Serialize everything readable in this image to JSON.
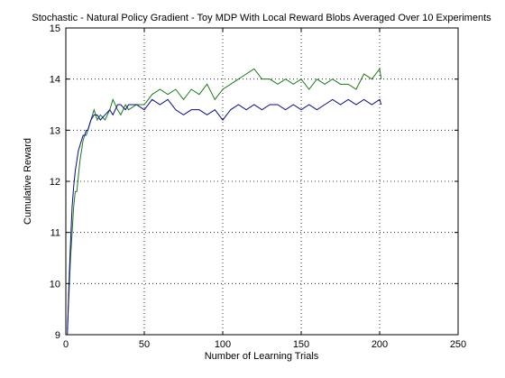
{
  "chart_data": {
    "type": "line",
    "title": "Stochastic - Natural Policy Gradient - Toy MDP With Local Reward Blobs Averaged Over 10 Experiments",
    "xlabel": "Number of Learning Trials",
    "ylabel": "Cumulative Reward",
    "xlim": [
      0,
      250
    ],
    "ylim": [
      9,
      15
    ],
    "xticks": [
      0,
      50,
      100,
      150,
      200,
      250
    ],
    "yticks": [
      9,
      10,
      11,
      12,
      13,
      14,
      15
    ],
    "grid": true,
    "series": [
      {
        "color": "#1a7a1a",
        "x": [
          1,
          2,
          3,
          4,
          5,
          6,
          7,
          8,
          9,
          10,
          11,
          12,
          13,
          14,
          15,
          16,
          18,
          20,
          22,
          25,
          28,
          30,
          33,
          35,
          38,
          40,
          45,
          50,
          55,
          60,
          65,
          70,
          75,
          80,
          85,
          90,
          95,
          100,
          105,
          110,
          115,
          120,
          125,
          130,
          135,
          140,
          145,
          150,
          155,
          160,
          165,
          170,
          175,
          180,
          185,
          190,
          195,
          200,
          201
        ],
        "values": [
          9.1,
          9.8,
          10.5,
          11.0,
          11.5,
          11.8,
          11.8,
          12.1,
          12.4,
          12.6,
          12.8,
          12.9,
          12.9,
          13.0,
          13.1,
          13.2,
          13.4,
          13.2,
          13.3,
          13.2,
          13.4,
          13.6,
          13.4,
          13.3,
          13.5,
          13.4,
          13.5,
          13.5,
          13.7,
          13.8,
          13.7,
          13.8,
          13.6,
          13.8,
          13.7,
          13.9,
          13.6,
          13.8,
          13.9,
          14.0,
          14.1,
          14.2,
          14.0,
          14.0,
          13.9,
          14.0,
          13.9,
          14.0,
          13.8,
          14.0,
          13.9,
          14.0,
          13.9,
          13.9,
          13.8,
          14.1,
          14.0,
          14.2,
          14.0
        ]
      },
      {
        "color": "#0a0a8c",
        "x": [
          1,
          2,
          3,
          4,
          5,
          6,
          7,
          8,
          9,
          10,
          11,
          12,
          13,
          14,
          15,
          16,
          18,
          20,
          22,
          25,
          28,
          30,
          33,
          35,
          38,
          40,
          45,
          50,
          55,
          60,
          65,
          70,
          75,
          80,
          85,
          90,
          95,
          100,
          105,
          110,
          115,
          120,
          125,
          130,
          135,
          140,
          145,
          150,
          155,
          160,
          165,
          170,
          175,
          180,
          185,
          190,
          195,
          200,
          201
        ],
        "values": [
          9.0,
          10.0,
          10.8,
          11.5,
          11.9,
          12.2,
          12.4,
          12.6,
          12.7,
          12.8,
          12.9,
          12.9,
          13.0,
          13.0,
          13.1,
          13.2,
          13.3,
          13.3,
          13.2,
          13.3,
          13.4,
          13.3,
          13.5,
          13.5,
          13.4,
          13.5,
          13.5,
          13.4,
          13.6,
          13.5,
          13.6,
          13.4,
          13.3,
          13.4,
          13.4,
          13.3,
          13.4,
          13.2,
          13.4,
          13.5,
          13.4,
          13.5,
          13.4,
          13.5,
          13.5,
          13.4,
          13.5,
          13.4,
          13.5,
          13.4,
          13.5,
          13.6,
          13.5,
          13.6,
          13.5,
          13.6,
          13.5,
          13.6,
          13.5
        ]
      }
    ]
  }
}
